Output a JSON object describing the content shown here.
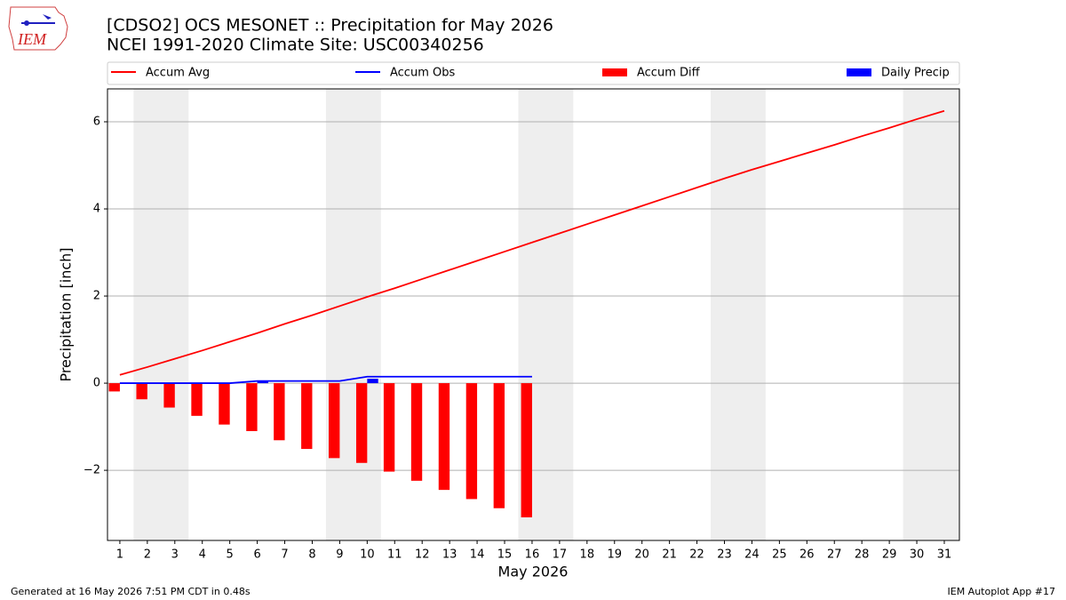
{
  "chart_data": {
    "type": "combo",
    "title": "[CDSO2] OCS MESONET :: Precipitation for May 2026",
    "subtitle": "NCEI 1991-2020 Climate Site: USC00340256",
    "xlabel": "May 2026",
    "ylabel": "Precipitation [inch]",
    "x": [
      1,
      2,
      3,
      4,
      5,
      6,
      7,
      8,
      9,
      10,
      11,
      12,
      13,
      14,
      15,
      16,
      17,
      18,
      19,
      20,
      21,
      22,
      23,
      24,
      25,
      26,
      27,
      28,
      29,
      30,
      31
    ],
    "xlim": [
      0.55,
      31.55
    ],
    "xticks": [
      1,
      2,
      3,
      4,
      5,
      6,
      7,
      8,
      9,
      10,
      11,
      12,
      13,
      14,
      15,
      16,
      17,
      18,
      19,
      20,
      21,
      22,
      23,
      24,
      25,
      26,
      27,
      28,
      29,
      30,
      31
    ],
    "ylim": [
      -3.61,
      6.755
    ],
    "yticks": [
      {
        "value": -2,
        "label": "−2"
      },
      0,
      2,
      4,
      6
    ],
    "grid": true,
    "weekend_spans": [
      [
        1.5,
        3.5
      ],
      [
        8.5,
        10.5
      ],
      [
        15.5,
        17.5
      ],
      [
        22.5,
        24.5
      ],
      [
        29.5,
        31.55
      ]
    ],
    "weekend_color": "#eeeeee",
    "legend": "top",
    "series": [
      {
        "name": "Accum Avg",
        "type": "line",
        "color": "#ff0000",
        "values": [
          0.19,
          0.37,
          0.56,
          0.75,
          0.95,
          1.15,
          1.36,
          1.56,
          1.77,
          1.98,
          2.18,
          2.39,
          2.6,
          2.81,
          3.02,
          3.23,
          3.44,
          3.65,
          3.86,
          4.07,
          4.28,
          4.49,
          4.7,
          4.9,
          5.09,
          5.28,
          5.47,
          5.67,
          5.86,
          6.06,
          6.25
        ]
      },
      {
        "name": "Accum Obs",
        "type": "line",
        "color": "#0000ff",
        "values": [
          0,
          0,
          0,
          0,
          0,
          0.05,
          0.05,
          0.05,
          0.05,
          0.15,
          0.15,
          0.15,
          0.15,
          0.15,
          0.15,
          0.15,
          null,
          null,
          null,
          null,
          null,
          null,
          null,
          null,
          null,
          null,
          null,
          null,
          null,
          null,
          null
        ]
      },
      {
        "name": "Accum Diff",
        "type": "bar",
        "offset": -0.2,
        "color": "#ff0000",
        "values": [
          -0.19,
          -0.37,
          -0.56,
          -0.75,
          -0.95,
          -1.1,
          -1.31,
          -1.51,
          -1.72,
          -1.83,
          -2.03,
          -2.24,
          -2.45,
          -2.66,
          -2.87,
          -3.08,
          null,
          null,
          null,
          null,
          null,
          null,
          null,
          null,
          null,
          null,
          null,
          null,
          null,
          null,
          null
        ]
      },
      {
        "name": "Daily Precip",
        "type": "bar",
        "offset": 0.2,
        "color": "#0000ff",
        "values": [
          0,
          0,
          0,
          0,
          0,
          0.05,
          0,
          0,
          0,
          0.1,
          0,
          0,
          0,
          0,
          0,
          0,
          null,
          null,
          null,
          null,
          null,
          null,
          null,
          null,
          null,
          null,
          null,
          null,
          null,
          null,
          null
        ]
      }
    ],
    "footer_left": "Generated at 16 May 2026 7:51 PM CDT in 0.48s",
    "footer_right": "IEM Autoplot App #17",
    "logo_text": "IEM"
  }
}
